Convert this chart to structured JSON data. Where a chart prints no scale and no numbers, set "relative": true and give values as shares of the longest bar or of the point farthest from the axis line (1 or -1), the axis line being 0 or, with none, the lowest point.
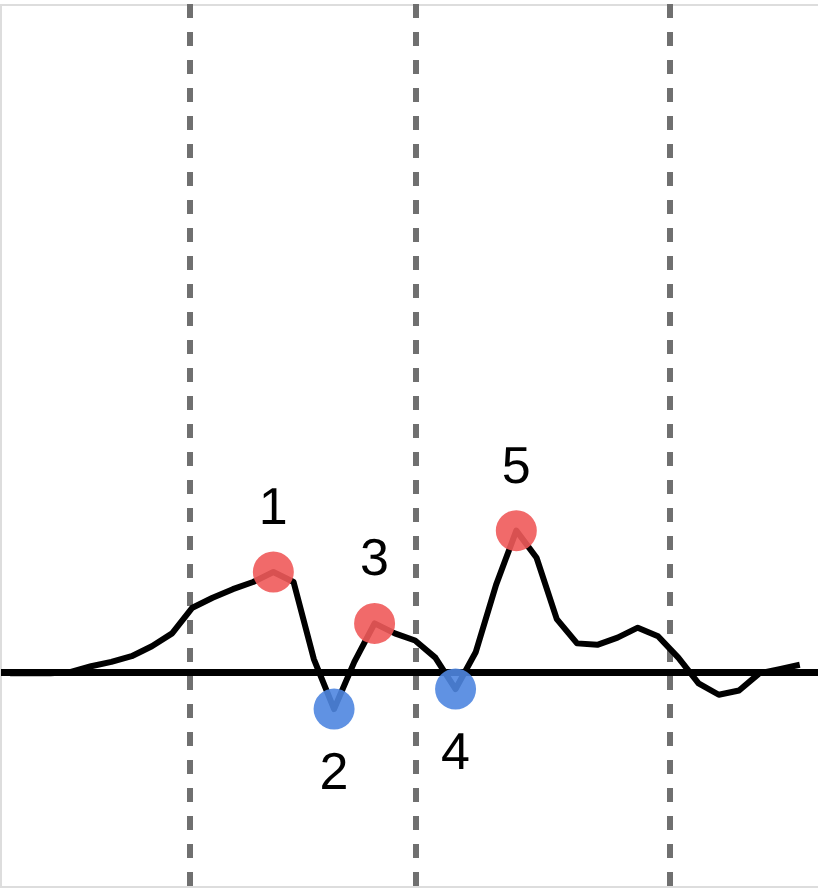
{
  "chart_data": {
    "type": "line",
    "relative": true,
    "tick_labels": false,
    "categories": [
      null,
      null,
      null,
      null,
      null,
      null,
      null,
      null,
      null,
      null,
      null,
      null,
      null,
      null,
      null,
      null,
      null,
      null,
      null,
      null,
      null,
      null,
      null,
      null,
      null,
      null,
      null,
      null,
      null,
      null,
      null,
      null,
      null,
      null,
      null,
      null,
      null,
      null,
      null,
      null
    ],
    "series": [
      {
        "color": "#000000",
        "values": [
          0,
          0,
          0,
          0.01,
          0.05,
          0.08,
          0.12,
          0.19,
          0.28,
          0.46,
          0.53,
          0.59,
          0.64,
          0.71,
          0.64,
          0.1,
          -0.25,
          0.08,
          0.35,
          0.28,
          0.23,
          0.11,
          -0.11,
          0.15,
          0.62,
          1,
          0.81,
          0.38,
          0.21,
          0.2,
          0.25,
          0.32,
          0.26,
          0.11,
          -0.07,
          -0.15,
          -0.12,
          0,
          0.03,
          0.06
        ],
        "colors": [
          null,
          null,
          null,
          null,
          null,
          null,
          null,
          null,
          null,
          null,
          null,
          null,
          null,
          "#f05a5a",
          null,
          null,
          "#4f86e0",
          null,
          "#f05a5a",
          null,
          null,
          null,
          "#4f86e0",
          null,
          null,
          "#f05a5a",
          null,
          null,
          null,
          null,
          null,
          null,
          null,
          null,
          null,
          null,
          null,
          null,
          null,
          null
        ]
      }
    ],
    "annotations": [
      "1",
      "2",
      "3",
      "4",
      "5"
    ],
    "grid": "x"
  }
}
